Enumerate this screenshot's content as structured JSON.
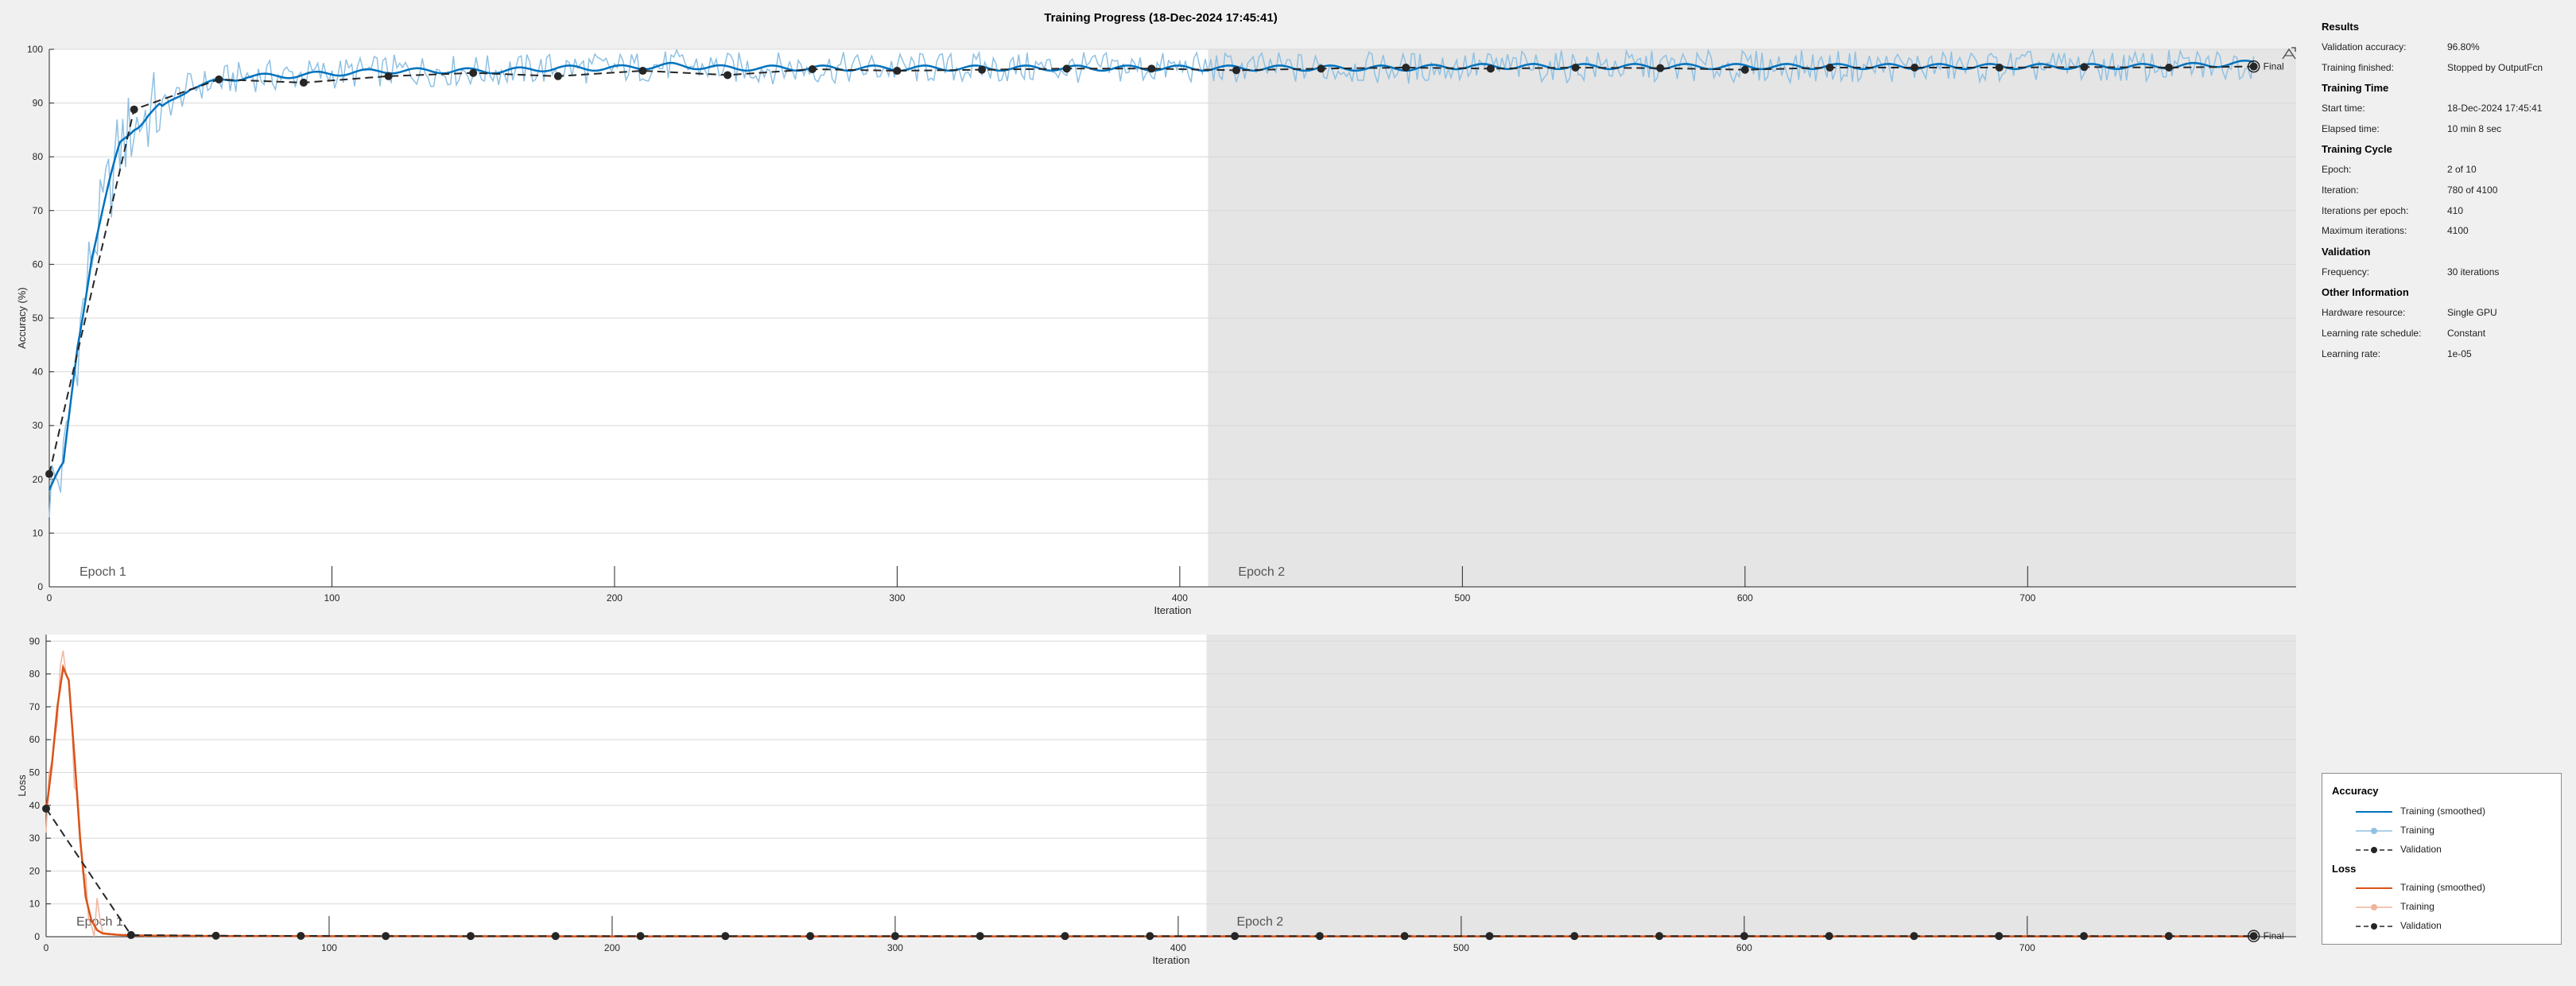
{
  "window": {
    "title": "Training Progress (18-Dec-2024 17:45:41)"
  },
  "info": {
    "sections": [
      {
        "heading": "Results",
        "rows": [
          {
            "label": "Validation accuracy:",
            "value": "96.80%"
          },
          {
            "label": "Training finished:",
            "value": "Stopped by OutputFcn"
          }
        ]
      },
      {
        "heading": "Training Time",
        "rows": [
          {
            "label": "Start time:",
            "value": "18-Dec-2024 17:45:41"
          },
          {
            "label": "Elapsed time:",
            "value": "10 min 8 sec"
          }
        ]
      },
      {
        "heading": "Training Cycle",
        "rows": [
          {
            "label": "Epoch:",
            "value": "2 of 10"
          },
          {
            "label": "Iteration:",
            "value": "780 of 4100"
          },
          {
            "label": "Iterations per epoch:",
            "value": "410"
          },
          {
            "label": "Maximum iterations:",
            "value": "4100"
          }
        ]
      },
      {
        "heading": "Validation",
        "rows": [
          {
            "label": "Frequency:",
            "value": "30 iterations"
          }
        ]
      },
      {
        "heading": "Other Information",
        "rows": [
          {
            "label": "Hardware resource:",
            "value": "Single GPU"
          },
          {
            "label": "Learning rate schedule:",
            "value": "Constant"
          },
          {
            "label": "Learning rate:",
            "value": "1e-05"
          }
        ]
      }
    ]
  },
  "legend": {
    "accuracy_heading": "Accuracy",
    "loss_heading": "Loss",
    "accuracy_items": [
      "Training (smoothed)",
      "Training",
      "Validation"
    ],
    "loss_items": [
      "Training (smoothed)",
      "Training",
      "Validation"
    ]
  },
  "colors": {
    "accuracy_smoothed": "#0072bd",
    "accuracy_raw": "#8fc1e3",
    "loss_smoothed": "#d95319",
    "loss_raw": "#f2b39c",
    "validation": "#262626",
    "epoch_shade": "#e5e5e5",
    "plot_bg": "#ffffff"
  },
  "icons": {
    "export": "export-plot-icon"
  },
  "chart_data": [
    {
      "type": "line",
      "title": "",
      "xlabel": "Iteration",
      "ylabel": "Accuracy (%)",
      "xlim": [
        0,
        795
      ],
      "ylim": [
        0,
        100
      ],
      "xticks": [
        0,
        100,
        200,
        300,
        400,
        500,
        600,
        700
      ],
      "yticks": [
        0,
        10,
        20,
        30,
        40,
        50,
        60,
        70,
        80,
        90,
        100
      ],
      "grid": true,
      "epochs": [
        {
          "label": "Epoch 1",
          "start": 0,
          "end": 410
        },
        {
          "label": "Epoch 2",
          "start": 410,
          "end": 795
        }
      ],
      "final_label": "Final",
      "series": [
        {
          "name": "Training (smoothed)",
          "x": [
            0,
            5,
            10,
            15,
            20,
            25,
            30,
            35,
            40,
            45,
            50,
            60,
            70,
            80,
            100,
            120,
            140,
            160,
            180,
            200,
            220,
            240,
            260,
            280,
            300,
            320,
            340,
            360,
            380,
            400,
            420,
            440,
            460,
            480,
            500,
            520,
            540,
            560,
            580,
            600,
            620,
            640,
            660,
            680,
            700,
            720,
            740,
            760,
            780
          ],
          "values": [
            18,
            22,
            45,
            62,
            72,
            82,
            86,
            88,
            89,
            91,
            93,
            94,
            95,
            95,
            95.5,
            96,
            96,
            96,
            96.5,
            96.5,
            97,
            96.5,
            96.5,
            96.5,
            96.5,
            96.5,
            96.5,
            96.5,
            96.5,
            96.5,
            96.5,
            96.5,
            96.5,
            96.5,
            96.8,
            96.8,
            96.8,
            96.8,
            96.8,
            96.8,
            96.8,
            96.8,
            96.8,
            96.8,
            96.8,
            96.8,
            96.8,
            97,
            97.5
          ]
        },
        {
          "name": "Validation",
          "x": [
            0,
            30,
            60,
            90,
            120,
            150,
            180,
            210,
            240,
            270,
            300,
            330,
            360,
            390,
            420,
            450,
            480,
            510,
            540,
            570,
            600,
            630,
            660,
            690,
            720,
            750,
            780
          ],
          "values": [
            21,
            88.8,
            94.4,
            93.8,
            95,
            95.6,
            95,
            96,
            95.2,
            96.3,
            96,
            96.2,
            96.4,
            96.4,
            96.1,
            96.4,
            96.6,
            96.4,
            96.6,
            96.5,
            96.2,
            96.6,
            96.6,
            96.6,
            96.7,
            96.6,
            96.8
          ]
        }
      ]
    },
    {
      "type": "line",
      "title": "",
      "xlabel": "Iteration",
      "ylabel": "Loss",
      "xlim": [
        0,
        795
      ],
      "ylim": [
        0,
        92
      ],
      "xticks": [
        0,
        100,
        200,
        300,
        400,
        500,
        600,
        700
      ],
      "yticks": [
        0,
        10,
        20,
        30,
        40,
        50,
        60,
        70,
        80,
        90
      ],
      "grid": true,
      "epochs": [
        {
          "label": "Epoch 1",
          "start": 0,
          "end": 410
        },
        {
          "label": "Epoch 2",
          "start": 410,
          "end": 795
        }
      ],
      "final_label": "Final",
      "series": [
        {
          "name": "Training (smoothed)",
          "x": [
            0,
            2,
            4,
            6,
            8,
            10,
            12,
            14,
            16,
            18,
            20,
            25,
            30,
            40,
            60,
            100,
            200,
            300,
            400,
            500,
            600,
            700,
            780
          ],
          "values": [
            38,
            52,
            70,
            82,
            78,
            55,
            30,
            12,
            5,
            2,
            1,
            0.6,
            0.4,
            0.3,
            0.2,
            0.15,
            0.1,
            0.1,
            0.1,
            0.1,
            0.1,
            0.1,
            0.1
          ]
        },
        {
          "name": "Validation",
          "x": [
            0,
            30,
            60,
            90,
            120,
            150,
            180,
            210,
            240,
            270,
            300,
            330,
            360,
            390,
            420,
            450,
            480,
            510,
            540,
            570,
            600,
            630,
            660,
            690,
            720,
            750,
            780
          ],
          "values": [
            39,
            0.5,
            0.3,
            0.25,
            0.2,
            0.2,
            0.2,
            0.2,
            0.2,
            0.2,
            0.2,
            0.2,
            0.2,
            0.2,
            0.2,
            0.2,
            0.2,
            0.2,
            0.2,
            0.2,
            0.2,
            0.2,
            0.2,
            0.2,
            0.2,
            0.2,
            0.2
          ]
        }
      ]
    }
  ]
}
